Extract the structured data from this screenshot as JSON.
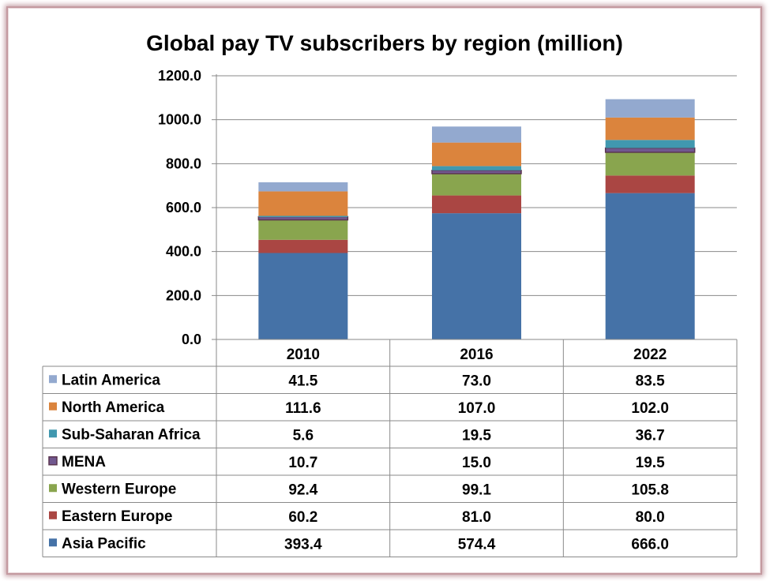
{
  "chart_data": {
    "type": "bar",
    "stacked": true,
    "title": "Global pay TV subscribers by region (million)",
    "categories": [
      "2010",
      "2016",
      "2022"
    ],
    "ylim": [
      0,
      1200
    ],
    "yticks": [
      "0.0",
      "200.0",
      "400.0",
      "600.0",
      "800.0",
      "1000.0",
      "1200.0"
    ],
    "series": [
      {
        "name": "Asia Pacific",
        "color": "#4572a7",
        "values": [
          393.4,
          574.4,
          666.0
        ],
        "labels": [
          "393.4",
          "574.4",
          "666.0"
        ]
      },
      {
        "name": "Eastern Europe",
        "color": "#aa4643",
        "values": [
          60.2,
          81.0,
          80.0
        ],
        "labels": [
          "60.2",
          "81.0",
          "80.0"
        ]
      },
      {
        "name": "Western Europe",
        "color": "#89a54e",
        "values": [
          92.4,
          99.1,
          105.8
        ],
        "labels": [
          "92.4",
          "99.1",
          "105.8"
        ]
      },
      {
        "name": "MENA",
        "color": "#71588f",
        "values": [
          10.7,
          15.0,
          19.5
        ],
        "labels": [
          "10.7",
          "15.0",
          "19.5"
        ]
      },
      {
        "name": "Sub-Saharan Africa",
        "color": "#4198af",
        "values": [
          5.6,
          19.5,
          36.7
        ],
        "labels": [
          "5.6",
          "19.5",
          "36.7"
        ]
      },
      {
        "name": "North America",
        "color": "#db843d",
        "values": [
          111.6,
          107.0,
          102.0
        ],
        "labels": [
          "111.6",
          "107.0",
          "102.0"
        ]
      },
      {
        "name": "Latin America",
        "color": "#93a9cf",
        "values": [
          41.5,
          73.0,
          83.5
        ],
        "labels": [
          "41.5",
          "73.0",
          "83.5"
        ]
      }
    ]
  }
}
